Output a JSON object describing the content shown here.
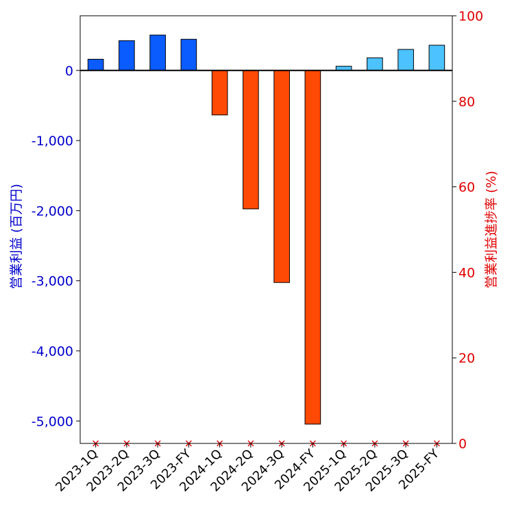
{
  "chart_data": {
    "type": "bar",
    "title": "",
    "categories": [
      "2023-1Q",
      "2023-2Q",
      "2023-3Q",
      "2023-FY",
      "2024-1Q",
      "2024-2Q",
      "2024-3Q",
      "2024-FY",
      "2025-1Q",
      "2025-2Q",
      "2025-3Q",
      "2025-FY"
    ],
    "values": [
      160,
      425,
      505,
      445,
      -635,
      -1975,
      -3025,
      -5045,
      60,
      180,
      300,
      360
    ],
    "bar_colors": [
      "#0a5cff",
      "#0a5cff",
      "#0a5cff",
      "#0a5cff",
      "#ff4a05",
      "#ff4a05",
      "#ff4a05",
      "#ff4a05",
      "#4cc2ff",
      "#4cc2ff",
      "#4cc2ff",
      "#4cc2ff"
    ],
    "progress_rate": [
      0,
      0,
      0,
      0,
      0,
      0,
      0,
      0,
      0,
      0,
      0,
      0
    ],
    "progress_color": "#e00000",
    "ylabel_left": "営業利益 (百万円)",
    "ylabel_right": "営業利益進捗率 (%)",
    "ylim_left": [
      -5320,
      780
    ],
    "ylim_right": [
      0,
      100
    ],
    "yticks_left": [
      0,
      -1000,
      -2000,
      -3000,
      -4000,
      -5000
    ],
    "yticks_left_labels": [
      "0",
      "-1,000",
      "-2,000",
      "-3,000",
      "-4,000",
      "-5,000"
    ],
    "yticks_right": [
      0,
      20,
      40,
      60,
      80,
      100
    ],
    "yticks_right_labels": [
      "0",
      "20",
      "40",
      "60",
      "80",
      "100"
    ],
    "left_axis_color": "#0000cc",
    "right_axis_color": "#e00000",
    "grid": false
  }
}
